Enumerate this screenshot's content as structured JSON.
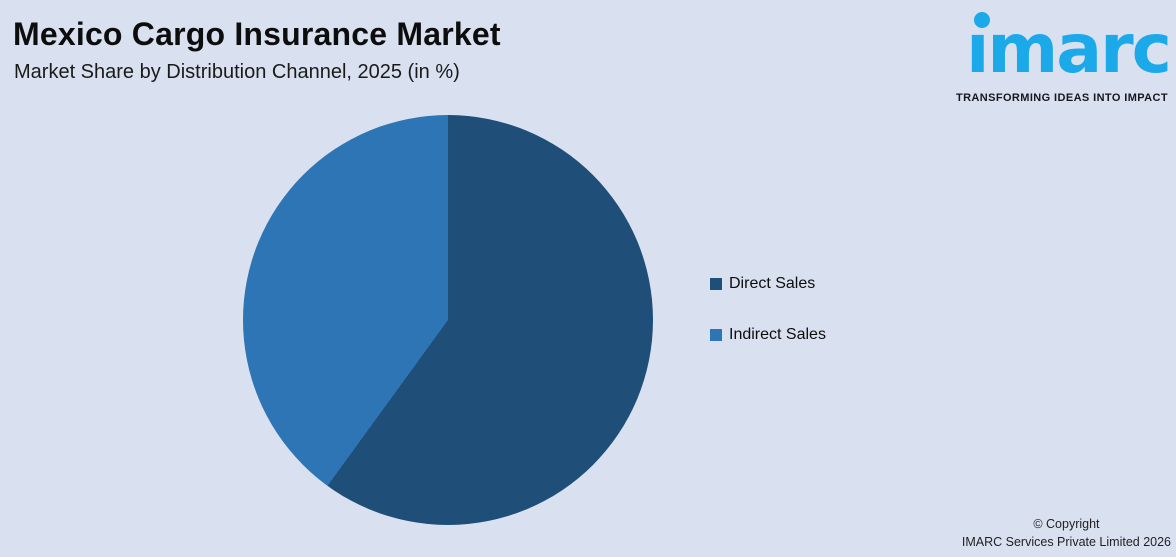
{
  "page": {
    "background_color": "#D9E1F0"
  },
  "header": {
    "title": "Mexico Cargo Insurance Market",
    "subtitle": "Market Share by Distribution Channel, 2025 (in %)"
  },
  "logo": {
    "brand": "imarc",
    "brand_dotless": "ımarc",
    "tagline": "TRANSFORMING IDEAS INTO IMPACT",
    "brand_color": "#1CA9EA"
  },
  "chart_data": {
    "type": "pie",
    "title": "Market Share by Distribution Channel, 2025 (in %)",
    "start_angle_deg": 0,
    "direction": "clockwise",
    "data_labels": false,
    "legend_position": "right",
    "slices": [
      {
        "label": "Direct Sales",
        "value": 60,
        "color": "#1F4E79"
      },
      {
        "label": "Indirect Sales",
        "value": 40,
        "color": "#2E75B6"
      }
    ]
  },
  "footer": {
    "copyright_line1": "© Copyright",
    "copyright_line2": "IMARC Services Private Limited 2026"
  }
}
